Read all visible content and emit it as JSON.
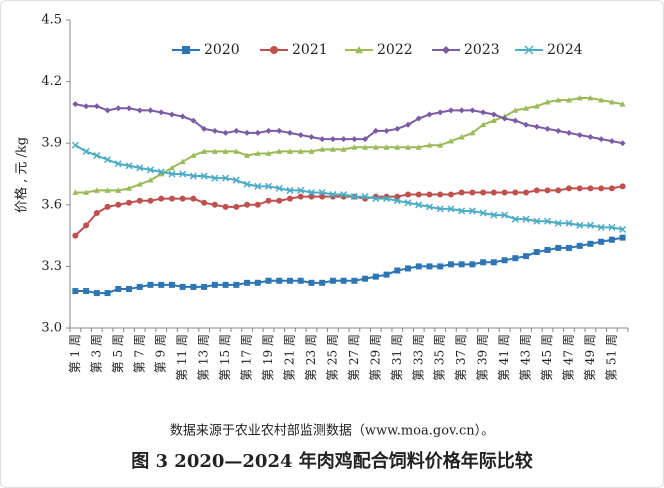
{
  "chart_data": {
    "type": "line",
    "y_label": "价格 , 元 /kg",
    "note": "数据来源于农业农村部监测数据（www.moa.gov.cn）。",
    "title": "图 3 2020—2024 年肉鸡配合饲料价格年际比较",
    "categories": [
      "第 1 周",
      null,
      "第 3 周",
      null,
      "第 5 周",
      null,
      "第 7 周",
      null,
      "第 9 周",
      null,
      "第 11 周",
      null,
      "第 13 周",
      null,
      "第 15 周",
      null,
      "第 17 周",
      null,
      "第 19 周",
      null,
      "第 21 周",
      null,
      "第 23 周",
      null,
      "第 25 周",
      null,
      "第 27 周",
      null,
      "第 29 周",
      null,
      "第 31 周",
      null,
      "第 33 周",
      null,
      "第 35 周",
      null,
      "第 37 周",
      null,
      "第 39 周",
      null,
      "第 41 周",
      null,
      "第 43 周",
      null,
      "第 45 周",
      null,
      "第 47 周",
      null,
      "第 49 周",
      null,
      "第 51 周",
      null
    ],
    "ylim": [
      3.0,
      4.5
    ],
    "yticks": [
      {
        "value": 3.0,
        "label": "3.0"
      },
      3.3,
      3.6,
      3.9,
      4.2,
      4.5
    ],
    "grid": false,
    "legend": "top",
    "series": [
      {
        "name": "2020",
        "color": "#2e75b6",
        "marker": "square",
        "values": [
          3.18,
          3.18,
          3.17,
          3.17,
          3.19,
          3.19,
          3.2,
          3.21,
          3.21,
          3.21,
          3.2,
          3.2,
          3.2,
          3.21,
          3.21,
          3.21,
          3.22,
          3.22,
          3.23,
          3.23,
          3.23,
          3.23,
          3.22,
          3.22,
          3.23,
          3.23,
          3.23,
          3.24,
          3.25,
          3.26,
          3.28,
          3.29,
          3.3,
          3.3,
          3.3,
          3.31,
          3.31,
          3.31,
          3.32,
          3.32,
          3.33,
          3.34,
          3.35,
          3.37,
          3.38,
          3.39,
          3.39,
          3.4,
          3.41,
          3.42,
          3.43,
          3.44
        ]
      },
      {
        "name": "2021",
        "color": "#c0504d",
        "marker": "circle",
        "values": [
          3.45,
          3.5,
          3.56,
          3.59,
          3.6,
          3.61,
          3.62,
          3.62,
          3.63,
          3.63,
          3.63,
          3.63,
          3.61,
          3.6,
          3.59,
          3.59,
          3.6,
          3.6,
          3.62,
          3.62,
          3.63,
          3.64,
          3.64,
          3.64,
          3.64,
          3.64,
          3.64,
          3.63,
          3.64,
          3.64,
          3.64,
          3.65,
          3.65,
          3.65,
          3.65,
          3.65,
          3.66,
          3.66,
          3.66,
          3.66,
          3.66,
          3.66,
          3.66,
          3.67,
          3.67,
          3.67,
          3.68,
          3.68,
          3.68,
          3.68,
          3.68,
          3.69
        ]
      },
      {
        "name": "2022",
        "color": "#9bbb59",
        "marker": "triangle",
        "values": [
          3.66,
          3.66,
          3.67,
          3.67,
          3.67,
          3.68,
          3.7,
          3.72,
          3.75,
          3.78,
          3.81,
          3.84,
          3.86,
          3.86,
          3.86,
          3.86,
          3.84,
          3.85,
          3.85,
          3.86,
          3.86,
          3.86,
          3.86,
          3.87,
          3.87,
          3.87,
          3.88,
          3.88,
          3.88,
          3.88,
          3.88,
          3.88,
          3.88,
          3.89,
          3.89,
          3.91,
          3.93,
          3.95,
          3.99,
          4.01,
          4.03,
          4.06,
          4.07,
          4.08,
          4.1,
          4.11,
          4.11,
          4.12,
          4.12,
          4.11,
          4.1,
          4.09
        ]
      },
      {
        "name": "2023",
        "color": "#7b5aa6",
        "marker": "diamond",
        "values": [
          4.09,
          4.08,
          4.08,
          4.06,
          4.07,
          4.07,
          4.06,
          4.06,
          4.05,
          4.04,
          4.03,
          4.01,
          3.97,
          3.96,
          3.95,
          3.96,
          3.95,
          3.95,
          3.96,
          3.96,
          3.95,
          3.94,
          3.93,
          3.92,
          3.92,
          3.92,
          3.92,
          3.92,
          3.96,
          3.96,
          3.97,
          3.99,
          4.02,
          4.04,
          4.05,
          4.06,
          4.06,
          4.06,
          4.05,
          4.04,
          4.02,
          4.01,
          3.99,
          3.98,
          3.97,
          3.96,
          3.95,
          3.94,
          3.93,
          3.92,
          3.91,
          3.9
        ]
      },
      {
        "name": "2024",
        "color": "#4bacc6",
        "marker": "x",
        "values": [
          3.89,
          3.86,
          3.84,
          3.82,
          3.8,
          3.79,
          3.78,
          3.77,
          3.76,
          3.75,
          3.75,
          3.74,
          3.74,
          3.73,
          3.73,
          3.72,
          3.7,
          3.69,
          3.69,
          3.68,
          3.67,
          3.67,
          3.66,
          3.66,
          3.65,
          3.65,
          3.64,
          3.64,
          3.63,
          3.63,
          3.62,
          3.61,
          3.6,
          3.59,
          3.58,
          3.58,
          3.57,
          3.57,
          3.56,
          3.55,
          3.55,
          3.53,
          3.53,
          3.52,
          3.52,
          3.51,
          3.51,
          3.5,
          3.5,
          3.49,
          3.49,
          3.48
        ]
      }
    ]
  }
}
